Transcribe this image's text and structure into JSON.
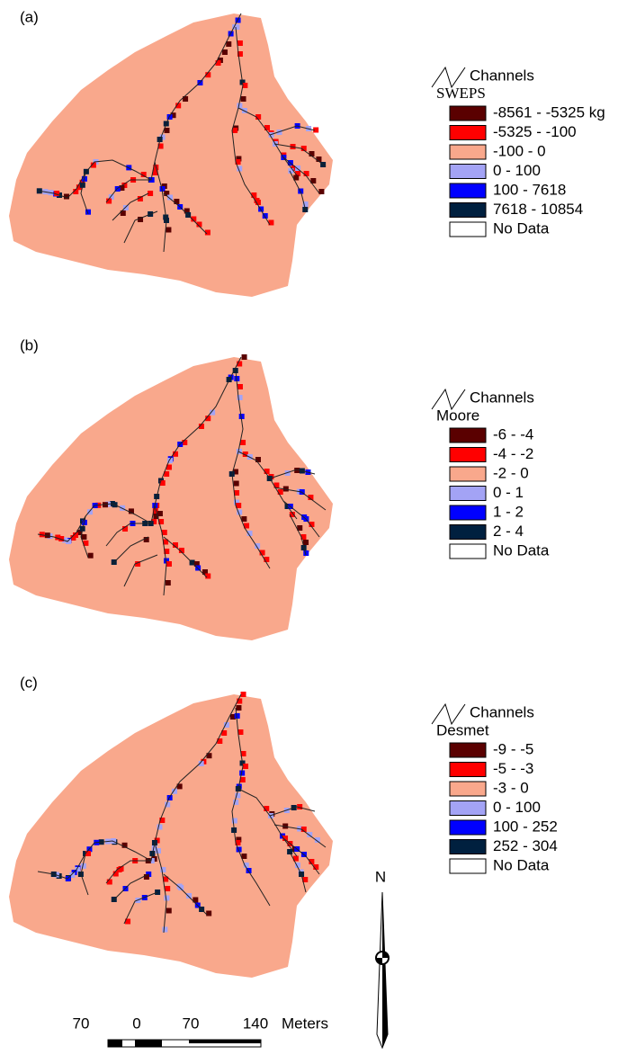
{
  "panels": [
    {
      "label": "(a)",
      "legend": {
        "channels": "Channels",
        "title": "SWEPS",
        "classes": [
          {
            "label": "-8561 - -5325 kg",
            "color": "#5a0000"
          },
          {
            "label": "-5325 - -100",
            "color": "#ff0000"
          },
          {
            "label": "-100 - 0",
            "color": "#f9a88c"
          },
          {
            "label": "0 - 100",
            "color": "#a3a3f5"
          },
          {
            "label": "100 - 7618",
            "color": "#0000ff"
          },
          {
            "label": "7618 - 10854",
            "color": "#00203f"
          },
          {
            "label": "No Data",
            "color": "#ffffff"
          }
        ]
      }
    },
    {
      "label": "(b)",
      "legend": {
        "channels": "Channels",
        "title": "Moore",
        "classes": [
          {
            "label": "-6 - -4",
            "color": "#5a0000"
          },
          {
            "label": "-4 - -2",
            "color": "#ff0000"
          },
          {
            "label": "-2 - 0",
            "color": "#f9a88c"
          },
          {
            "label": "0 - 1",
            "color": "#a3a3f5"
          },
          {
            "label": "1 - 2",
            "color": "#0000ff"
          },
          {
            "label": "2 - 4",
            "color": "#00203f"
          },
          {
            "label": "No Data",
            "color": "#ffffff"
          }
        ]
      }
    },
    {
      "label": "(c)",
      "legend": {
        "channels": "Channels",
        "title": "Desmet",
        "classes": [
          {
            "label": "-9 - -5",
            "color": "#5a0000"
          },
          {
            "label": "-5 - -3",
            "color": "#ff0000"
          },
          {
            "label": "-3 - 0",
            "color": "#f9a88c"
          },
          {
            "label": "0 - 100",
            "color": "#a3a3f5"
          },
          {
            "label": "100 - 252",
            "color": "#0000ff"
          },
          {
            "label": "252 - 304",
            "color": "#00203f"
          },
          {
            "label": "No Data",
            "color": "#ffffff"
          }
        ]
      }
    }
  ],
  "north": "N",
  "scale_bar": {
    "labels": [
      "70",
      "0",
      "70",
      "140"
    ],
    "unit": "Meters"
  }
}
